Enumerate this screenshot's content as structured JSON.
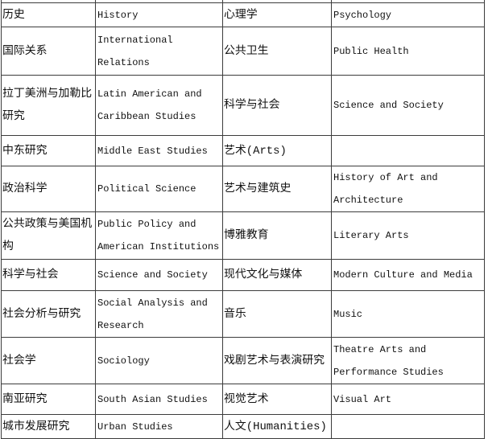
{
  "page": {
    "background_color": "#ffffff",
    "border_color": "#3c3c3c",
    "text_color": "#111111"
  },
  "table": {
    "description": "bilingual-subject-translation-table",
    "rows": [
      {
        "cells": [
          "历史",
          "History",
          "心理学",
          "Psychology"
        ]
      },
      {
        "cells": [
          "国际关系",
          "International Relations",
          "公共卫生",
          "Public Health"
        ]
      },
      {
        "cells": [
          "拉丁美洲与加勒比研究",
          "Latin American and Caribbean Studies",
          "科学与社会",
          "Science and Society"
        ]
      },
      {
        "cells": [
          "中东研究",
          "Middle East Studies",
          "艺术(Arts)",
          ""
        ]
      },
      {
        "cells": [
          "政治科学",
          "Political Science",
          "艺术与建筑史",
          "History of Art and Architecture"
        ]
      },
      {
        "cells": [
          "公共政策与美国机构",
          "Public Policy and American Institutions",
          "博雅教育",
          "Literary Arts"
        ]
      },
      {
        "cells": [
          "科学与社会",
          "Science and Society",
          "现代文化与媒体",
          "Modern Culture and Media"
        ]
      },
      {
        "cells": [
          "社会分析与研究",
          "Social Analysis and Research",
          "音乐",
          "Music"
        ]
      },
      {
        "cells": [
          "社会学",
          "Sociology",
          "戏剧艺术与表演研究",
          "Theatre Arts and Performance Studies"
        ]
      },
      {
        "cells": [
          "南亚研究",
          "South Asian Studies",
          "视觉艺术",
          "Visual Art"
        ]
      },
      {
        "cells": [
          "城市发展研究",
          "Urban Studies",
          "人文(Humanities)",
          ""
        ]
      }
    ]
  }
}
